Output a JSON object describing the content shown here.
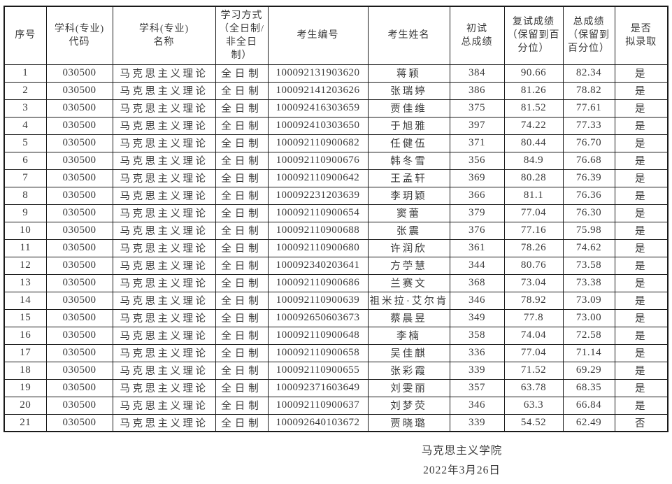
{
  "document": {
    "title_hint": "拟录取名单表",
    "colors": {
      "ink": "#3a3a3a",
      "border": "#1a1a1a",
      "background": "#ffffff"
    },
    "table": {
      "headers": [
        {
          "id": "no",
          "label": "序号",
          "cjk": true
        },
        {
          "id": "code",
          "label": "学科(专业)\n代码",
          "cjk": true
        },
        {
          "id": "major",
          "label": "学科(专业)\n名称",
          "cjk": true
        },
        {
          "id": "mode",
          "label": "学习方式\n（全日制/\n非全日\n制）",
          "cjk": true
        },
        {
          "id": "candidate-id",
          "label": "考生编号",
          "cjk": false
        },
        {
          "id": "candidate-name",
          "label": "考生姓名",
          "cjk": true
        },
        {
          "id": "initial-score",
          "label": "初试\n总成绩",
          "cjk": false
        },
        {
          "id": "retest-score",
          "label": "复试成绩\n（保留到百\n分位）",
          "cjk": false
        },
        {
          "id": "total-score",
          "label": "总成绩\n（保留到\n百分位）",
          "cjk": false
        },
        {
          "id": "admitted",
          "label": "是否\n拟录取",
          "cjk": true
        }
      ],
      "rows": [
        [
          "1",
          "030500",
          "马克思主义理论",
          "全日制",
          "100092131903620",
          "蒋颖",
          "384",
          "90.66",
          "82.34",
          "是"
        ],
        [
          "2",
          "030500",
          "马克思主义理论",
          "全日制",
          "100092141203626",
          "张瑞婷",
          "386",
          "81.26",
          "78.82",
          "是"
        ],
        [
          "3",
          "030500",
          "马克思主义理论",
          "全日制",
          "100092416303659",
          "贾佳维",
          "375",
          "81.52",
          "77.61",
          "是"
        ],
        [
          "4",
          "030500",
          "马克思主义理论",
          "全日制",
          "100092410303650",
          "于旭雅",
          "397",
          "74.22",
          "77.33",
          "是"
        ],
        [
          "5",
          "030500",
          "马克思主义理论",
          "全日制",
          "100092110900682",
          "任健伍",
          "371",
          "80.44",
          "76.70",
          "是"
        ],
        [
          "6",
          "030500",
          "马克思主义理论",
          "全日制",
          "100092110900676",
          "韩冬雪",
          "356",
          "84.9",
          "76.68",
          "是"
        ],
        [
          "7",
          "030500",
          "马克思主义理论",
          "全日制",
          "100092110900642",
          "王孟轩",
          "369",
          "80.28",
          "76.39",
          "是"
        ],
        [
          "8",
          "030500",
          "马克思主义理论",
          "全日制",
          "100092231203639",
          "李玥颖",
          "366",
          "81.1",
          "76.36",
          "是"
        ],
        [
          "9",
          "030500",
          "马克思主义理论",
          "全日制",
          "100092110900654",
          "窦蕾",
          "379",
          "77.04",
          "76.30",
          "是"
        ],
        [
          "10",
          "030500",
          "马克思主义理论",
          "全日制",
          "100092110900688",
          "张震",
          "376",
          "77.16",
          "75.98",
          "是"
        ],
        [
          "11",
          "030500",
          "马克思主义理论",
          "全日制",
          "100092110900680",
          "许润欣",
          "361",
          "78.26",
          "74.62",
          "是"
        ],
        [
          "12",
          "030500",
          "马克思主义理论",
          "全日制",
          "100092340203641",
          "方苧慧",
          "344",
          "80.76",
          "73.58",
          "是"
        ],
        [
          "13",
          "030500",
          "马克思主义理论",
          "全日制",
          "100092110900686",
          "兰赛文",
          "368",
          "73.04",
          "73.38",
          "是"
        ],
        [
          "14",
          "030500",
          "马克思主义理论",
          "全日制",
          "100092110900639",
          "祖米拉·艾尔肯",
          "346",
          "78.92",
          "73.09",
          "是"
        ],
        [
          "15",
          "030500",
          "马克思主义理论",
          "全日制",
          "100092650603673",
          "蔡晨昱",
          "349",
          "77.8",
          "73.00",
          "是"
        ],
        [
          "16",
          "030500",
          "马克思主义理论",
          "全日制",
          "100092110900648",
          "李楠",
          "358",
          "74.04",
          "72.58",
          "是"
        ],
        [
          "17",
          "030500",
          "马克思主义理论",
          "全日制",
          "100092110900658",
          "吴佳麒",
          "336",
          "77.04",
          "71.14",
          "是"
        ],
        [
          "18",
          "030500",
          "马克思主义理论",
          "全日制",
          "100092110900655",
          "张彩霞",
          "339",
          "71.52",
          "69.29",
          "是"
        ],
        [
          "19",
          "030500",
          "马克思主义理论",
          "全日制",
          "100092371603649",
          "刘雯丽",
          "357",
          "63.78",
          "68.35",
          "是"
        ],
        [
          "20",
          "030500",
          "马克思主义理论",
          "全日制",
          "100092110900637",
          "刘梦荧",
          "346",
          "63.3",
          "66.84",
          "是"
        ],
        [
          "21",
          "030500",
          "马克思主义理论",
          "全日制",
          "100092640103672",
          "贾晓璐",
          "339",
          "54.52",
          "62.49",
          "否"
        ]
      ]
    },
    "footer": {
      "signature": "马克思主义学院",
      "date": "2022年3月26日"
    }
  }
}
